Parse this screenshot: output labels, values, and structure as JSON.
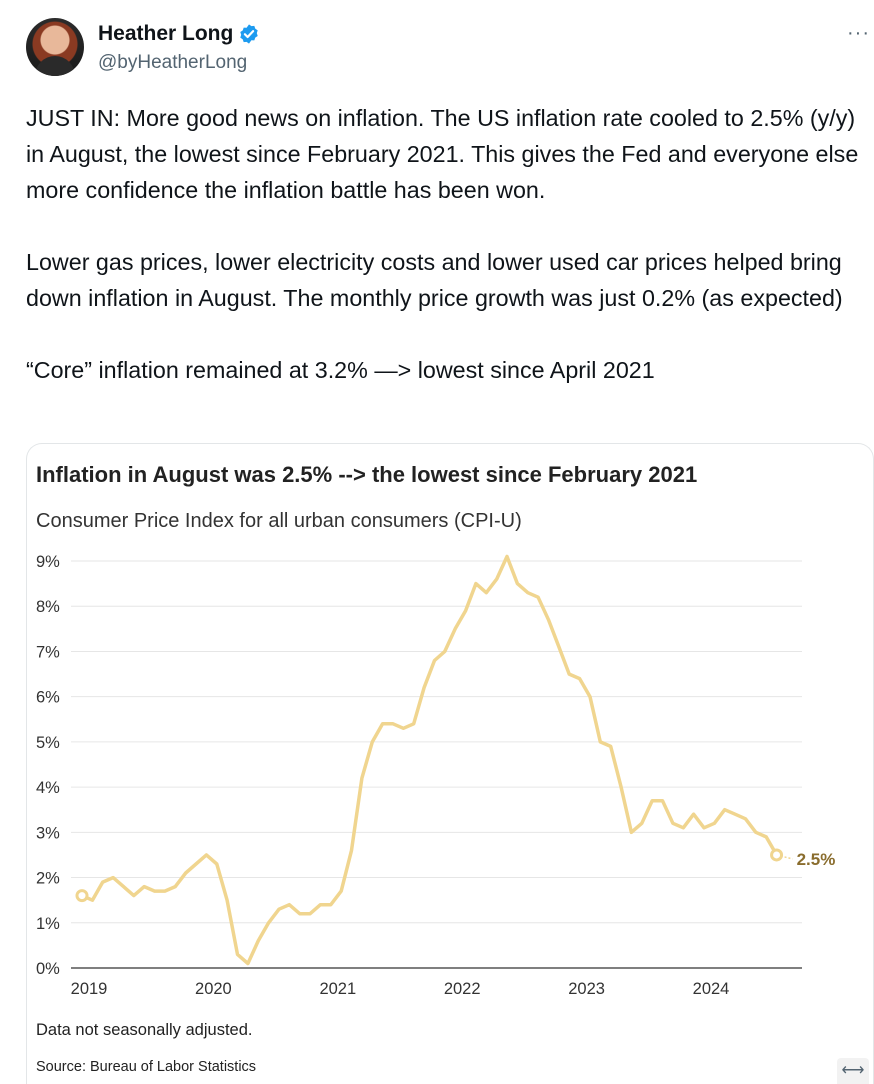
{
  "author": {
    "name": "Heather Long",
    "handle": "@byHeatherLong",
    "verified_icon": "verified-badge-icon",
    "more_icon": "more-horizontal-icon",
    "more_label": "···"
  },
  "tweet": {
    "p1": "JUST IN: More good news on inflation. The US inflation rate cooled to 2.5% (y/y) in August, the lowest since February 2021. This gives the Fed and everyone else more confidence the inflation battle has been won.",
    "p2": "Lower gas prices, lower electricity costs and lower used car prices helped bring down inflation in August. The monthly price growth was just 0.2% (as expected)",
    "p3": "“Core” inflation remained at 3.2% —> lowest since April 2021"
  },
  "card": {
    "note": "Data not seasonally adjusted.",
    "source": "Source: Bureau of Labor Statistics",
    "expand_label": "⟷",
    "expand_icon": "expand-icon"
  },
  "colors": {
    "line": "#f0d58f",
    "end_label": "#8a6d2e",
    "accent": "#1d9bf0"
  },
  "chart_data": {
    "type": "line",
    "title": "Inflation in August was 2.5% --> the lowest since February 2021",
    "subtitle": "Consumer Price Index for all urban consumers (CPI-U)",
    "xlabel": "",
    "ylabel": "",
    "x_ticks": [
      "2019",
      "2020",
      "2021",
      "2022",
      "2023",
      "2024"
    ],
    "y_ticks": [
      "0%",
      "1%",
      "2%",
      "3%",
      "4%",
      "5%",
      "6%",
      "7%",
      "8%",
      "9%"
    ],
    "ylim": [
      0,
      9
    ],
    "grid": true,
    "end_label": "2.5%",
    "series": [
      {
        "x": [
          "2019-01",
          "2019-02",
          "2019-03",
          "2019-04",
          "2019-05",
          "2019-06",
          "2019-07",
          "2019-08",
          "2019-09",
          "2019-10",
          "2019-11",
          "2019-12",
          "2020-01",
          "2020-02",
          "2020-03",
          "2020-04",
          "2020-05",
          "2020-06",
          "2020-07",
          "2020-08",
          "2020-09",
          "2020-10",
          "2020-11",
          "2020-12",
          "2021-01",
          "2021-02",
          "2021-03",
          "2021-04",
          "2021-05",
          "2021-06",
          "2021-07",
          "2021-08",
          "2021-09",
          "2021-10",
          "2021-11",
          "2021-12",
          "2022-01",
          "2022-02",
          "2022-03",
          "2022-04",
          "2022-05",
          "2022-06",
          "2022-07",
          "2022-08",
          "2022-09",
          "2022-10",
          "2022-11",
          "2022-12",
          "2023-01",
          "2023-02",
          "2023-03",
          "2023-04",
          "2023-05",
          "2023-06",
          "2023-07",
          "2023-08",
          "2023-09",
          "2023-10",
          "2023-11",
          "2023-12",
          "2024-01",
          "2024-02",
          "2024-03",
          "2024-04",
          "2024-05",
          "2024-06",
          "2024-07",
          "2024-08"
        ],
        "values": [
          1.6,
          1.5,
          1.9,
          2.0,
          1.8,
          1.6,
          1.8,
          1.7,
          1.7,
          1.8,
          2.1,
          2.3,
          2.5,
          2.3,
          1.5,
          0.3,
          0.1,
          0.6,
          1.0,
          1.3,
          1.4,
          1.2,
          1.2,
          1.4,
          1.4,
          1.7,
          2.6,
          4.2,
          5.0,
          5.4,
          5.4,
          5.3,
          5.4,
          6.2,
          6.8,
          7.0,
          7.5,
          7.9,
          8.5,
          8.3,
          8.6,
          9.1,
          8.5,
          8.3,
          8.2,
          7.7,
          7.1,
          6.5,
          6.4,
          6.0,
          5.0,
          4.9,
          4.0,
          3.0,
          3.2,
          3.7,
          3.7,
          3.2,
          3.1,
          3.4,
          3.1,
          3.2,
          3.5,
          3.4,
          3.3,
          3.0,
          2.9,
          2.5
        ]
      }
    ]
  }
}
